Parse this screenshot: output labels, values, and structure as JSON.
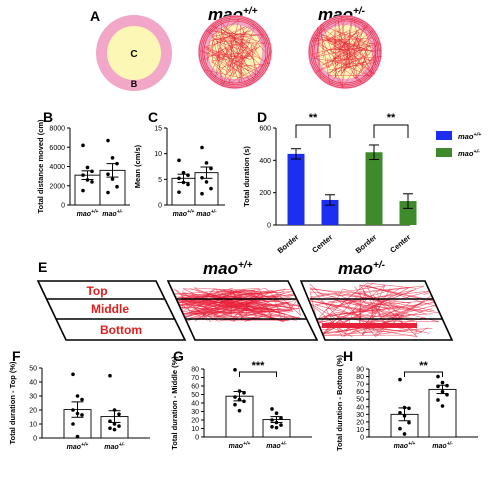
{
  "panels": {
    "A": {
      "letter": "A",
      "zone_center": "C",
      "zone_border": "B",
      "col2_title": "mao",
      "col2_sup": "+/+",
      "col3_title": "mao",
      "col3_sup": "+/-"
    },
    "E": {
      "letter": "E",
      "zones": [
        "Top",
        "Middle",
        "Bottom"
      ],
      "col2_title": "mao",
      "col2_sup": "+/+",
      "col3_title": "mao",
      "col3_sup": "+/-"
    }
  },
  "group_labels": {
    "g1": "mao",
    "g1_sup": "+/+",
    "g2": "mao",
    "g2_sup": "+/-"
  },
  "colors": {
    "blue": "#1c2ff0",
    "green": "#3f8a2a",
    "pink": "#f2a6c8",
    "yellow": "#fdf7b6",
    "trace": "#e8213a"
  },
  "chart_data": [
    {
      "panel": "B",
      "type": "bar",
      "ylabel": "Total distance moved (cm)",
      "ylim": [
        0,
        8000
      ],
      "yticks": [
        "0",
        "2000",
        "4000",
        "6000",
        "8000"
      ],
      "categories": [
        "+/+",
        "+/-"
      ],
      "values": [
        3100,
        3600
      ],
      "sem": [
        450,
        700
      ],
      "points": [
        [
          6200,
          3900,
          3500,
          3100,
          2600,
          2400,
          1500
        ],
        [
          6700,
          4900,
          4300,
          3200,
          2700,
          1900,
          1300
        ]
      ]
    },
    {
      "panel": "C",
      "type": "bar",
      "ylabel": "Mean (cm/s)",
      "ylim": [
        0,
        15
      ],
      "yticks": [
        "0",
        "5",
        "10",
        "15"
      ],
      "categories": [
        "+/+",
        "+/-"
      ],
      "values": [
        5.2,
        6.3
      ],
      "sem": [
        0.8,
        1.1
      ],
      "points": [
        [
          8.7,
          6.3,
          5.8,
          5.2,
          4.4,
          4.0,
          2.5
        ],
        [
          11.2,
          8.2,
          7.1,
          5.3,
          4.5,
          3.2,
          2.2
        ]
      ]
    },
    {
      "panel": "D",
      "type": "bar",
      "ylabel": "Total duration (s)",
      "ylim": [
        0,
        600
      ],
      "yticks": [
        "0",
        "200",
        "400",
        "600"
      ],
      "categories": [
        "Border",
        "Center",
        "Border",
        "Center"
      ],
      "values": [
        440,
        155,
        450,
        148
      ],
      "sem": [
        32,
        32,
        45,
        45
      ],
      "bar_colors": [
        "blue",
        "blue",
        "green",
        "green"
      ],
      "significance": [
        "**",
        "**"
      ],
      "legend": [
        {
          "label": "mao",
          "sup": "+/+",
          "color": "blue"
        },
        {
          "label": "mao",
          "sup": "+/-",
          "color": "green"
        }
      ]
    },
    {
      "panel": "F",
      "type": "bar",
      "ylabel": "Total duration - Top (%)",
      "ylim": [
        0,
        50
      ],
      "yticks": [
        "0",
        "10",
        "20",
        "30",
        "40",
        "50"
      ],
      "categories": [
        "+/+",
        "+/-"
      ],
      "values": [
        20.3,
        15.3
      ],
      "sem": [
        5.5,
        4.2
      ],
      "points": [
        [
          45.5,
          30,
          27.5,
          20,
          17.5,
          16.5,
          10,
          1
        ],
        [
          44.5,
          20,
          17,
          12,
          10,
          8.5,
          7,
          6
        ]
      ]
    },
    {
      "panel": "G",
      "type": "bar",
      "ylabel": "Total duration - Middle (%)",
      "ylim": [
        0,
        80
      ],
      "yticks": [
        "0",
        "10",
        "20",
        "30",
        "40",
        "50",
        "60",
        "70",
        "80"
      ],
      "categories": [
        "+/+",
        "+/-"
      ],
      "values": [
        48,
        20.5
      ],
      "sem": [
        5.5,
        3.5
      ],
      "significance": "***",
      "points": [
        [
          79,
          54,
          52,
          47,
          44,
          42,
          38,
          31
        ],
        [
          33,
          28,
          22,
          20,
          17,
          14,
          12,
          11
        ]
      ]
    },
    {
      "panel": "H",
      "type": "bar",
      "ylabel": "Total duration - Bottom (%)",
      "ylim": [
        0,
        90
      ],
      "yticks": [
        "0",
        "10",
        "20",
        "30",
        "40",
        "50",
        "60",
        "70",
        "80",
        "90"
      ],
      "categories": [
        "+/+",
        "+/-"
      ],
      "values": [
        30,
        63
      ],
      "sem": [
        8.5,
        5.5
      ],
      "significance": "**",
      "points": [
        [
          76,
          39,
          38,
          32,
          28,
          19,
          11,
          4
        ],
        [
          80,
          72,
          68,
          67,
          60,
          56,
          49,
          41
        ]
      ]
    }
  ]
}
